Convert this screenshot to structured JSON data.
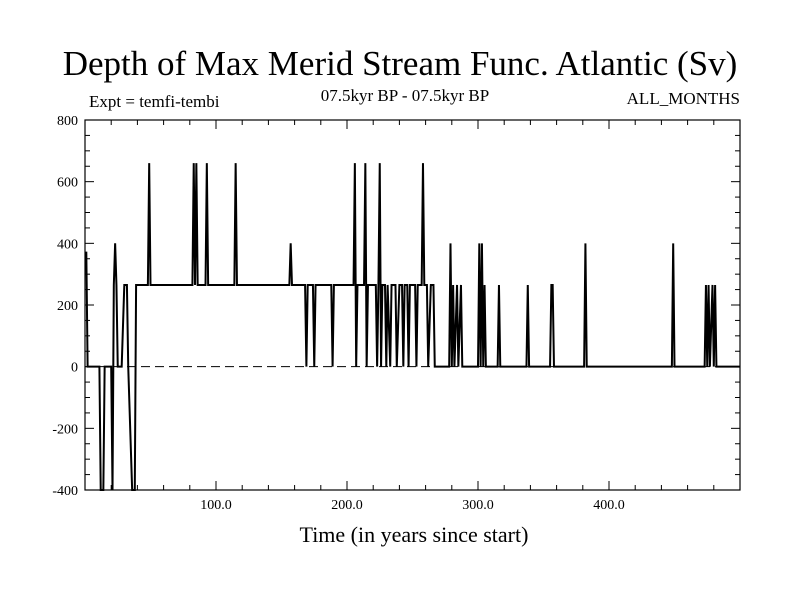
{
  "header": {
    "title": "Depth of Max Merid Stream Func. Atlantic (Sv)",
    "experiment": "Expt = temfi-tembi",
    "period": "07.5kyr BP - 07.5kyr BP",
    "months": "ALL_MONTHS"
  },
  "chart_data": {
    "type": "line",
    "title": "Depth of Max Merid Stream Func. Atlantic (Sv)",
    "xlabel": "Time (in years since start)",
    "ylabel": "",
    "xlim": [
      0,
      500
    ],
    "ylim": [
      -400,
      800
    ],
    "x_ticks": [
      100,
      200,
      300,
      400
    ],
    "x_tick_labels": [
      "100.0",
      "200.0",
      "300.0",
      "400.0"
    ],
    "y_ticks": [
      -400,
      -200,
      0,
      200,
      400,
      600,
      800
    ],
    "y_tick_labels": [
      "-400",
      "-200",
      "0",
      "200",
      "400",
      "600",
      "800"
    ],
    "reference_line": {
      "y": 0,
      "style": "dashed"
    },
    "series": [
      {
        "name": "temfi-tembi",
        "color": "#000000",
        "points": [
          [
            0,
            370
          ],
          [
            1,
            370
          ],
          [
            2,
            0
          ],
          [
            11,
            0
          ],
          [
            12,
            -400
          ],
          [
            14,
            -400
          ],
          [
            15,
            0
          ],
          [
            20,
            0
          ],
          [
            21,
            -400
          ],
          [
            22,
            265
          ],
          [
            23,
            400
          ],
          [
            24,
            265
          ],
          [
            25,
            0
          ],
          [
            28,
            0
          ],
          [
            30,
            265
          ],
          [
            32,
            265
          ],
          [
            33,
            0
          ],
          [
            36,
            -400
          ],
          [
            38,
            -400
          ],
          [
            39,
            265
          ],
          [
            40,
            265
          ],
          [
            42,
            265
          ],
          [
            48,
            265
          ],
          [
            49,
            660
          ],
          [
            50,
            265
          ],
          [
            55,
            265
          ],
          [
            82,
            265
          ],
          [
            83,
            660
          ],
          [
            84,
            265
          ],
          [
            85,
            660
          ],
          [
            86,
            265
          ],
          [
            92,
            265
          ],
          [
            93,
            660
          ],
          [
            94,
            265
          ],
          [
            114,
            265
          ],
          [
            115,
            660
          ],
          [
            116,
            265
          ],
          [
            156,
            265
          ],
          [
            157,
            400
          ],
          [
            158,
            265
          ],
          [
            168,
            265
          ],
          [
            169,
            0
          ],
          [
            170,
            265
          ],
          [
            174,
            265
          ],
          [
            175,
            0
          ],
          [
            176,
            265
          ],
          [
            188,
            265
          ],
          [
            189,
            0
          ],
          [
            190,
            265
          ],
          [
            205,
            265
          ],
          [
            206,
            660
          ],
          [
            207,
            0
          ],
          [
            208,
            265
          ],
          [
            213,
            265
          ],
          [
            214,
            660
          ],
          [
            215,
            0
          ],
          [
            216,
            265
          ],
          [
            222,
            265
          ],
          [
            223,
            0
          ],
          [
            224,
            265
          ],
          [
            225,
            660
          ],
          [
            226,
            0
          ],
          [
            227,
            265
          ],
          [
            229,
            265
          ],
          [
            230,
            0
          ],
          [
            231,
            265
          ],
          [
            233,
            0
          ],
          [
            234,
            265
          ],
          [
            237,
            265
          ],
          [
            238,
            0
          ],
          [
            240,
            265
          ],
          [
            242,
            265
          ],
          [
            243,
            0
          ],
          [
            244,
            265
          ],
          [
            246,
            265
          ],
          [
            247,
            0
          ],
          [
            248,
            265
          ],
          [
            252,
            265
          ],
          [
            253,
            0
          ],
          [
            254,
            265
          ],
          [
            257,
            265
          ],
          [
            258,
            660
          ],
          [
            259,
            265
          ],
          [
            261,
            265
          ],
          [
            262,
            0
          ],
          [
            264,
            265
          ],
          [
            266,
            265
          ],
          [
            267,
            0
          ],
          [
            278,
            0
          ],
          [
            279,
            400
          ],
          [
            280,
            0
          ],
          [
            281,
            265
          ],
          [
            282,
            0
          ],
          [
            284,
            265
          ],
          [
            285,
            0
          ],
          [
            287,
            265
          ],
          [
            288,
            0
          ],
          [
            300,
            0
          ],
          [
            301,
            400
          ],
          [
            302,
            0
          ],
          [
            303,
            400
          ],
          [
            304,
            0
          ],
          [
            305,
            265
          ],
          [
            306,
            0
          ],
          [
            315,
            0
          ],
          [
            316,
            265
          ],
          [
            317,
            0
          ],
          [
            337,
            0
          ],
          [
            338,
            265
          ],
          [
            339,
            0
          ],
          [
            355,
            0
          ],
          [
            356,
            265
          ],
          [
            357,
            265
          ],
          [
            358,
            0
          ],
          [
            381,
            0
          ],
          [
            382,
            400
          ],
          [
            383,
            0
          ],
          [
            448,
            0
          ],
          [
            449,
            400
          ],
          [
            450,
            0
          ],
          [
            473,
            0
          ],
          [
            474,
            265
          ],
          [
            475,
            0
          ],
          [
            476,
            265
          ],
          [
            477,
            0
          ],
          [
            479,
            265
          ],
          [
            480,
            0
          ],
          [
            481,
            265
          ],
          [
            482,
            0
          ],
          [
            500,
            0
          ]
        ]
      }
    ]
  }
}
